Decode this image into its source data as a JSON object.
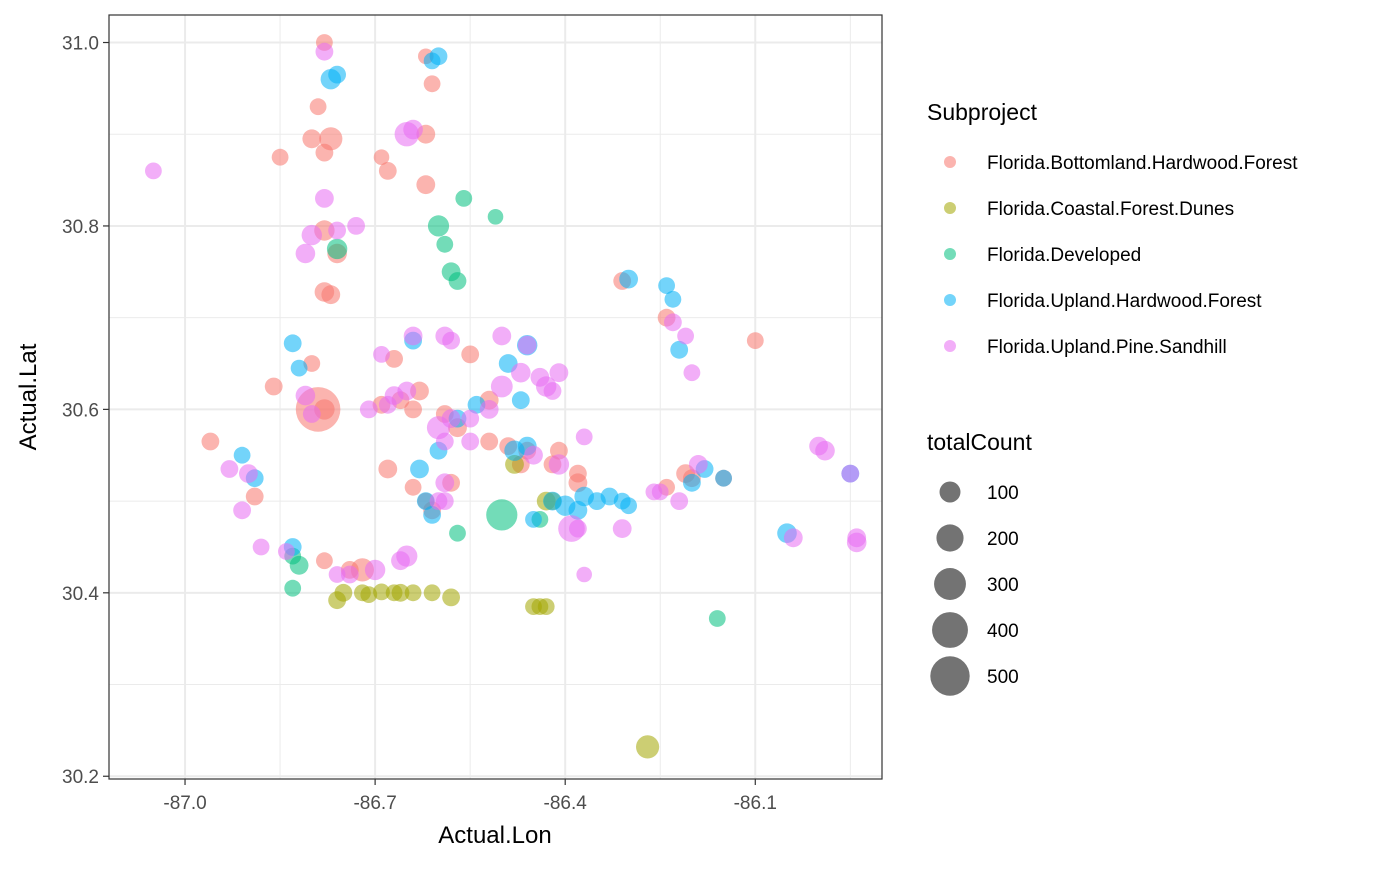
{
  "chart_data": {
    "type": "scatter",
    "xlabel": "Actual.Lon",
    "ylabel": "Actual.Lat",
    "xlim": [
      -87.12,
      -85.9
    ],
    "ylim": [
      30.197,
      31.03
    ],
    "x_ticks": [
      -87.0,
      -86.7,
      -86.4,
      -86.1
    ],
    "x_tick_labels": [
      "-87.0",
      "-86.7",
      "-86.4",
      "-86.1"
    ],
    "y_ticks": [
      30.2,
      30.4,
      30.6,
      30.8,
      31.0
    ],
    "y_tick_labels": [
      "30.2",
      "30.4",
      "30.6",
      "30.8",
      "31.0"
    ],
    "grid": true,
    "color_legend": {
      "title": "Subproject",
      "entries": [
        {
          "label": "Florida.Bottomland.Hardwood.Forest",
          "color": "#F8766D"
        },
        {
          "label": "Florida.Coastal.Forest.Dunes",
          "color": "#A3A500"
        },
        {
          "label": "Florida.Developed",
          "color": "#00BF7D"
        },
        {
          "label": "Florida.Upland.Hardwood.Forest",
          "color": "#00B0F6"
        },
        {
          "label": "Florida.Upland.Pine.Sandhill",
          "color": "#E76BF3"
        }
      ]
    },
    "size_legend": {
      "title": "totalCount",
      "values": [
        100,
        200,
        300,
        400,
        500
      ],
      "labels": [
        "100",
        "200",
        "300",
        "400",
        "500"
      ],
      "color": "#000000"
    },
    "point_alpha": 0.55,
    "series": [
      {
        "values": [
          [
            -86.78,
            31.0,
            20
          ],
          [
            -86.79,
            30.93,
            20
          ],
          [
            -86.8,
            30.895,
            30
          ],
          [
            -86.77,
            30.895,
            60
          ],
          [
            -86.85,
            30.875,
            20
          ],
          [
            -86.78,
            30.88,
            25
          ],
          [
            -86.69,
            30.875,
            15
          ],
          [
            -86.68,
            30.86,
            25
          ],
          [
            -86.62,
            30.985,
            15
          ],
          [
            -86.61,
            30.955,
            20
          ],
          [
            -86.62,
            30.9,
            30
          ],
          [
            -86.62,
            30.845,
            30
          ],
          [
            -86.78,
            30.795,
            40
          ],
          [
            -86.76,
            30.77,
            35
          ],
          [
            -86.78,
            30.728,
            35
          ],
          [
            -86.77,
            30.725,
            30
          ],
          [
            -86.8,
            30.65,
            20
          ],
          [
            -86.86,
            30.625,
            25
          ],
          [
            -86.79,
            30.6,
            350
          ],
          [
            -86.78,
            30.6,
            40
          ],
          [
            -86.96,
            30.565,
            25
          ],
          [
            -86.89,
            30.505,
            25
          ],
          [
            -86.78,
            30.435,
            20
          ],
          [
            -86.72,
            30.425,
            60
          ],
          [
            -86.74,
            30.425,
            25
          ],
          [
            -86.68,
            30.535,
            30
          ],
          [
            -86.69,
            30.605,
            25
          ],
          [
            -86.67,
            30.655,
            25
          ],
          [
            -86.63,
            30.62,
            30
          ],
          [
            -86.64,
            30.6,
            25
          ],
          [
            -86.66,
            30.61,
            25
          ],
          [
            -86.64,
            30.515,
            20
          ],
          [
            -86.62,
            30.5,
            20
          ],
          [
            -86.61,
            30.49,
            25
          ],
          [
            -86.59,
            30.595,
            25
          ],
          [
            -86.57,
            30.58,
            30
          ],
          [
            -86.52,
            30.61,
            30
          ],
          [
            -86.52,
            30.565,
            25
          ],
          [
            -86.49,
            30.56,
            25
          ],
          [
            -86.46,
            30.555,
            25
          ],
          [
            -86.41,
            30.555,
            25
          ],
          [
            -86.38,
            30.52,
            30
          ],
          [
            -86.38,
            30.53,
            25
          ],
          [
            -86.47,
            30.54,
            25
          ],
          [
            -86.55,
            30.66,
            25
          ],
          [
            -86.58,
            30.52,
            25
          ],
          [
            -86.31,
            30.74,
            25
          ],
          [
            -86.24,
            30.515,
            20
          ],
          [
            -86.21,
            30.53,
            30
          ],
          [
            -86.2,
            30.525,
            25
          ],
          [
            -86.24,
            30.7,
            25
          ],
          [
            -86.15,
            30.525,
            20
          ],
          [
            -86.1,
            30.675,
            20
          ],
          [
            -86.42,
            30.54,
            25
          ]
        ]
      },
      {
        "values": [
          [
            -86.76,
            30.392,
            25
          ],
          [
            -86.75,
            30.4,
            25
          ],
          [
            -86.71,
            30.398,
            20
          ],
          [
            -86.72,
            30.4,
            20
          ],
          [
            -86.69,
            30.401,
            20
          ],
          [
            -86.67,
            30.4,
            20
          ],
          [
            -86.66,
            30.4,
            25
          ],
          [
            -86.64,
            30.4,
            20
          ],
          [
            -86.61,
            30.4,
            20
          ],
          [
            -86.58,
            30.395,
            25
          ],
          [
            -86.45,
            30.385,
            20
          ],
          [
            -86.44,
            30.385,
            20
          ],
          [
            -86.43,
            30.385,
            20
          ],
          [
            -86.43,
            30.5,
            30
          ],
          [
            -86.42,
            30.5,
            25
          ],
          [
            -86.27,
            30.232,
            60
          ],
          [
            -86.48,
            30.54,
            30
          ]
        ]
      },
      {
        "values": [
          [
            -86.76,
            30.775,
            40
          ],
          [
            -86.6,
            30.8,
            45
          ],
          [
            -86.58,
            30.75,
            30
          ],
          [
            -86.59,
            30.78,
            20
          ],
          [
            -86.57,
            30.74,
            25
          ],
          [
            -86.56,
            30.83,
            20
          ],
          [
            -86.51,
            30.81,
            15
          ],
          [
            -86.5,
            30.485,
            140
          ],
          [
            -86.57,
            30.465,
            20
          ],
          [
            -86.44,
            30.48,
            20
          ],
          [
            -86.83,
            30.405,
            20
          ],
          [
            -86.82,
            30.43,
            30
          ],
          [
            -86.83,
            30.44,
            20
          ],
          [
            -86.16,
            30.372,
            20
          ]
        ]
      },
      {
        "values": [
          [
            -86.77,
            30.96,
            40
          ],
          [
            -86.6,
            30.985,
            25
          ],
          [
            -86.61,
            30.98,
            20
          ],
          [
            -86.83,
            30.672,
            25
          ],
          [
            -86.82,
            30.645,
            20
          ],
          [
            -86.76,
            30.965,
            25
          ],
          [
            -86.64,
            30.675,
            25
          ],
          [
            -86.49,
            30.65,
            30
          ],
          [
            -86.46,
            30.67,
            40
          ],
          [
            -86.47,
            30.61,
            25
          ],
          [
            -86.63,
            30.535,
            30
          ],
          [
            -86.62,
            30.5,
            25
          ],
          [
            -86.61,
            30.485,
            25
          ],
          [
            -86.54,
            30.605,
            25
          ],
          [
            -86.48,
            30.555,
            40
          ],
          [
            -86.46,
            30.56,
            30
          ],
          [
            -86.42,
            30.5,
            30
          ],
          [
            -86.4,
            30.495,
            40
          ],
          [
            -86.38,
            30.49,
            30
          ],
          [
            -86.37,
            30.505,
            35
          ],
          [
            -86.35,
            30.5,
            25
          ],
          [
            -86.33,
            30.505,
            25
          ],
          [
            -86.31,
            30.5,
            20
          ],
          [
            -86.3,
            30.495,
            20
          ],
          [
            -86.3,
            30.742,
            30
          ],
          [
            -86.24,
            30.735,
            20
          ],
          [
            -86.23,
            30.72,
            20
          ],
          [
            -86.22,
            30.665,
            25
          ],
          [
            -86.2,
            30.52,
            25
          ],
          [
            -86.18,
            30.535,
            25
          ],
          [
            -86.15,
            30.525,
            20
          ],
          [
            -86.89,
            30.525,
            25
          ],
          [
            -86.91,
            30.55,
            20
          ],
          [
            -86.83,
            30.45,
            25
          ],
          [
            -86.05,
            30.465,
            35
          ],
          [
            -85.95,
            30.53,
            25
          ],
          [
            -86.45,
            30.48,
            20
          ],
          [
            -86.6,
            30.555,
            25
          ],
          [
            -86.57,
            30.59,
            25
          ]
        ]
      },
      {
        "values": [
          [
            -86.78,
            30.99,
            25
          ],
          [
            -86.78,
            30.83,
            30
          ],
          [
            -87.05,
            30.86,
            20
          ],
          [
            -86.76,
            30.795,
            25
          ],
          [
            -86.73,
            30.8,
            25
          ],
          [
            -86.65,
            30.9,
            70
          ],
          [
            -86.64,
            30.905,
            35
          ],
          [
            -86.8,
            30.79,
            40
          ],
          [
            -86.81,
            30.77,
            35
          ],
          [
            -86.69,
            30.66,
            20
          ],
          [
            -86.64,
            30.68,
            30
          ],
          [
            -86.59,
            30.68,
            30
          ],
          [
            -86.58,
            30.675,
            25
          ],
          [
            -86.5,
            30.68,
            30
          ],
          [
            -86.46,
            30.67,
            30
          ],
          [
            -86.47,
            30.64,
            35
          ],
          [
            -86.43,
            30.625,
            40
          ],
          [
            -86.44,
            30.635,
            30
          ],
          [
            -86.41,
            30.64,
            30
          ],
          [
            -86.42,
            30.62,
            25
          ],
          [
            -86.5,
            30.625,
            50
          ],
          [
            -86.52,
            30.6,
            30
          ],
          [
            -86.55,
            30.59,
            25
          ],
          [
            -86.58,
            30.59,
            30
          ],
          [
            -86.6,
            30.58,
            60
          ],
          [
            -86.59,
            30.565,
            25
          ],
          [
            -86.55,
            30.565,
            25
          ],
          [
            -86.59,
            30.52,
            30
          ],
          [
            -86.6,
            30.5,
            25
          ],
          [
            -86.65,
            30.62,
            30
          ],
          [
            -86.67,
            30.615,
            30
          ],
          [
            -86.68,
            30.605,
            25
          ],
          [
            -86.71,
            30.6,
            25
          ],
          [
            -86.93,
            30.535,
            25
          ],
          [
            -86.9,
            30.53,
            30
          ],
          [
            -86.91,
            30.49,
            25
          ],
          [
            -86.88,
            30.45,
            20
          ],
          [
            -86.84,
            30.445,
            20
          ],
          [
            -86.81,
            30.615,
            35
          ],
          [
            -86.8,
            30.595,
            25
          ],
          [
            -86.74,
            30.42,
            25
          ],
          [
            -86.7,
            30.425,
            40
          ],
          [
            -86.65,
            30.44,
            45
          ],
          [
            -86.66,
            30.435,
            30
          ],
          [
            -86.59,
            30.5,
            25
          ],
          [
            -86.41,
            30.54,
            40
          ],
          [
            -86.45,
            30.55,
            30
          ],
          [
            -86.39,
            30.47,
            90
          ],
          [
            -86.37,
            30.57,
            20
          ],
          [
            -86.37,
            30.42,
            15
          ],
          [
            -86.25,
            30.51,
            20
          ],
          [
            -86.21,
            30.68,
            20
          ],
          [
            -86.2,
            30.64,
            20
          ],
          [
            -86.19,
            30.54,
            30
          ],
          [
            -86.22,
            30.5,
            25
          ],
          [
            -86.23,
            30.695,
            25
          ],
          [
            -86.26,
            30.51,
            20
          ],
          [
            -86.31,
            30.47,
            30
          ],
          [
            -86.04,
            30.46,
            30
          ],
          [
            -86.0,
            30.56,
            30
          ],
          [
            -85.99,
            30.555,
            35
          ],
          [
            -85.94,
            30.46,
            30
          ],
          [
            -85.94,
            30.455,
            35
          ],
          [
            -85.95,
            30.53,
            25
          ],
          [
            -86.76,
            30.42,
            20
          ],
          [
            -86.38,
            30.47,
            25
          ]
        ]
      }
    ]
  }
}
